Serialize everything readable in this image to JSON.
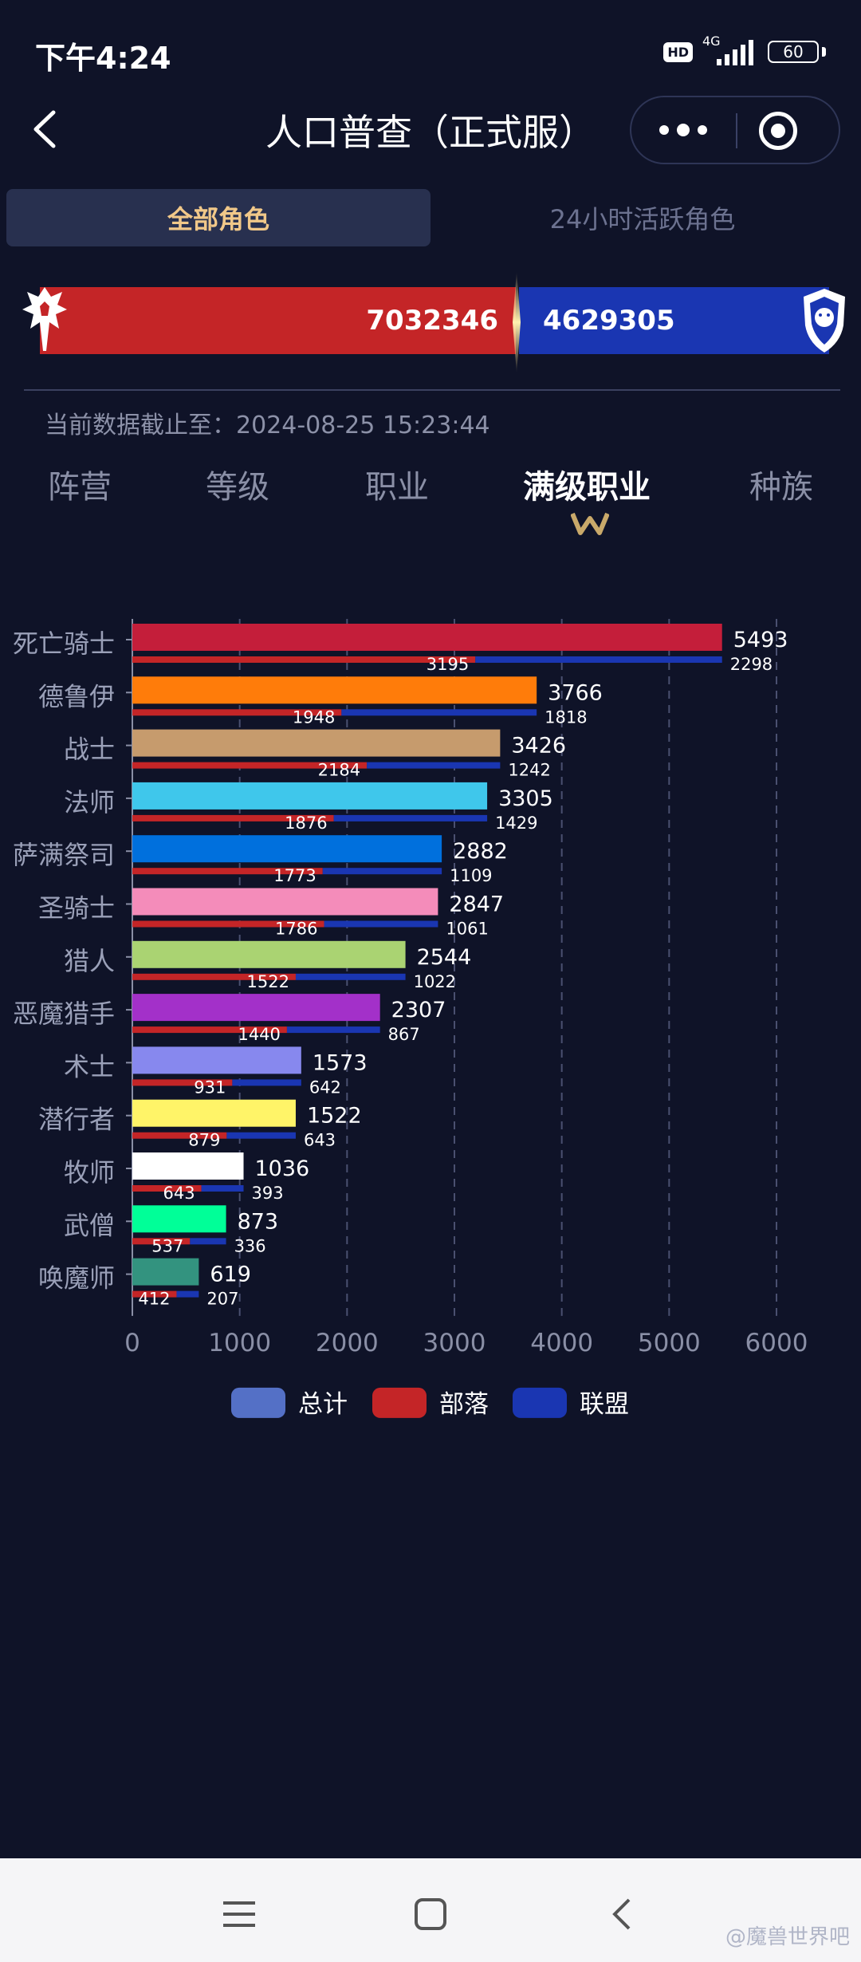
{
  "status_bar": {
    "time": "下午4:24",
    "hd": "HD",
    "network": "4G",
    "battery": "60"
  },
  "header": {
    "title": "人口普查（正式服）",
    "back_icon": "chevron-left-icon",
    "more_icon": "more-dots-icon",
    "close_icon": "target-circle-icon"
  },
  "segment_tabs": [
    {
      "label": "全部角色",
      "selected": true
    },
    {
      "label": "24小时活跃角色",
      "selected": false
    }
  ],
  "faction_bar": {
    "horde_value": "7032346",
    "alliance_value": "4629305",
    "horde_color": "#c42527",
    "alliance_color": "#1a36b2",
    "horde_share": 0.6031
  },
  "updated": {
    "label": "当前数据截止至：",
    "time": "2024-08-25 15:23:44"
  },
  "category_tabs": [
    {
      "label": "阵营",
      "active": false
    },
    {
      "label": "等级",
      "active": false
    },
    {
      "label": "职业",
      "active": false
    },
    {
      "label": "满级职业",
      "active": true
    },
    {
      "label": "种族",
      "active": false
    }
  ],
  "chart_data": {
    "type": "bar",
    "orientation": "horizontal",
    "categories": [
      "死亡骑士",
      "德鲁伊",
      "战士",
      "法师",
      "萨满祭司",
      "圣骑士",
      "猎人",
      "恶魔猎手",
      "术士",
      "潜行者",
      "牧师",
      "武僧",
      "唤魔师"
    ],
    "series": [
      {
        "name": "总计",
        "values": [
          5493,
          3766,
          3426,
          3305,
          2882,
          2847,
          2544,
          2307,
          1573,
          1522,
          1036,
          873,
          619
        ]
      },
      {
        "name": "部落",
        "values": [
          3195,
          1948,
          2184,
          1876,
          1773,
          1786,
          1522,
          1440,
          931,
          879,
          643,
          537,
          412
        ]
      },
      {
        "name": "联盟",
        "values": [
          2298,
          1818,
          1242,
          1429,
          1109,
          1061,
          1022,
          867,
          642,
          643,
          393,
          336,
          207
        ]
      }
    ],
    "class_colors": [
      "#c41e3a",
      "#ff7c0a",
      "#c69b6d",
      "#3fc7eb",
      "#0070dd",
      "#f48cba",
      "#aad372",
      "#a330c9",
      "#8788ee",
      "#fff468",
      "#ffffff",
      "#00ff98",
      "#33937f"
    ],
    "horde_color": "#c42527",
    "alliance_color": "#1a36b2",
    "legend_total_color": "#5470c6",
    "xlim": [
      0,
      6000
    ],
    "xticks": [
      0,
      1000,
      2000,
      3000,
      4000,
      5000,
      6000
    ],
    "legend_position": "bottom",
    "grid": "vertical-dashed"
  },
  "watermark": "@魔兽世界吧"
}
